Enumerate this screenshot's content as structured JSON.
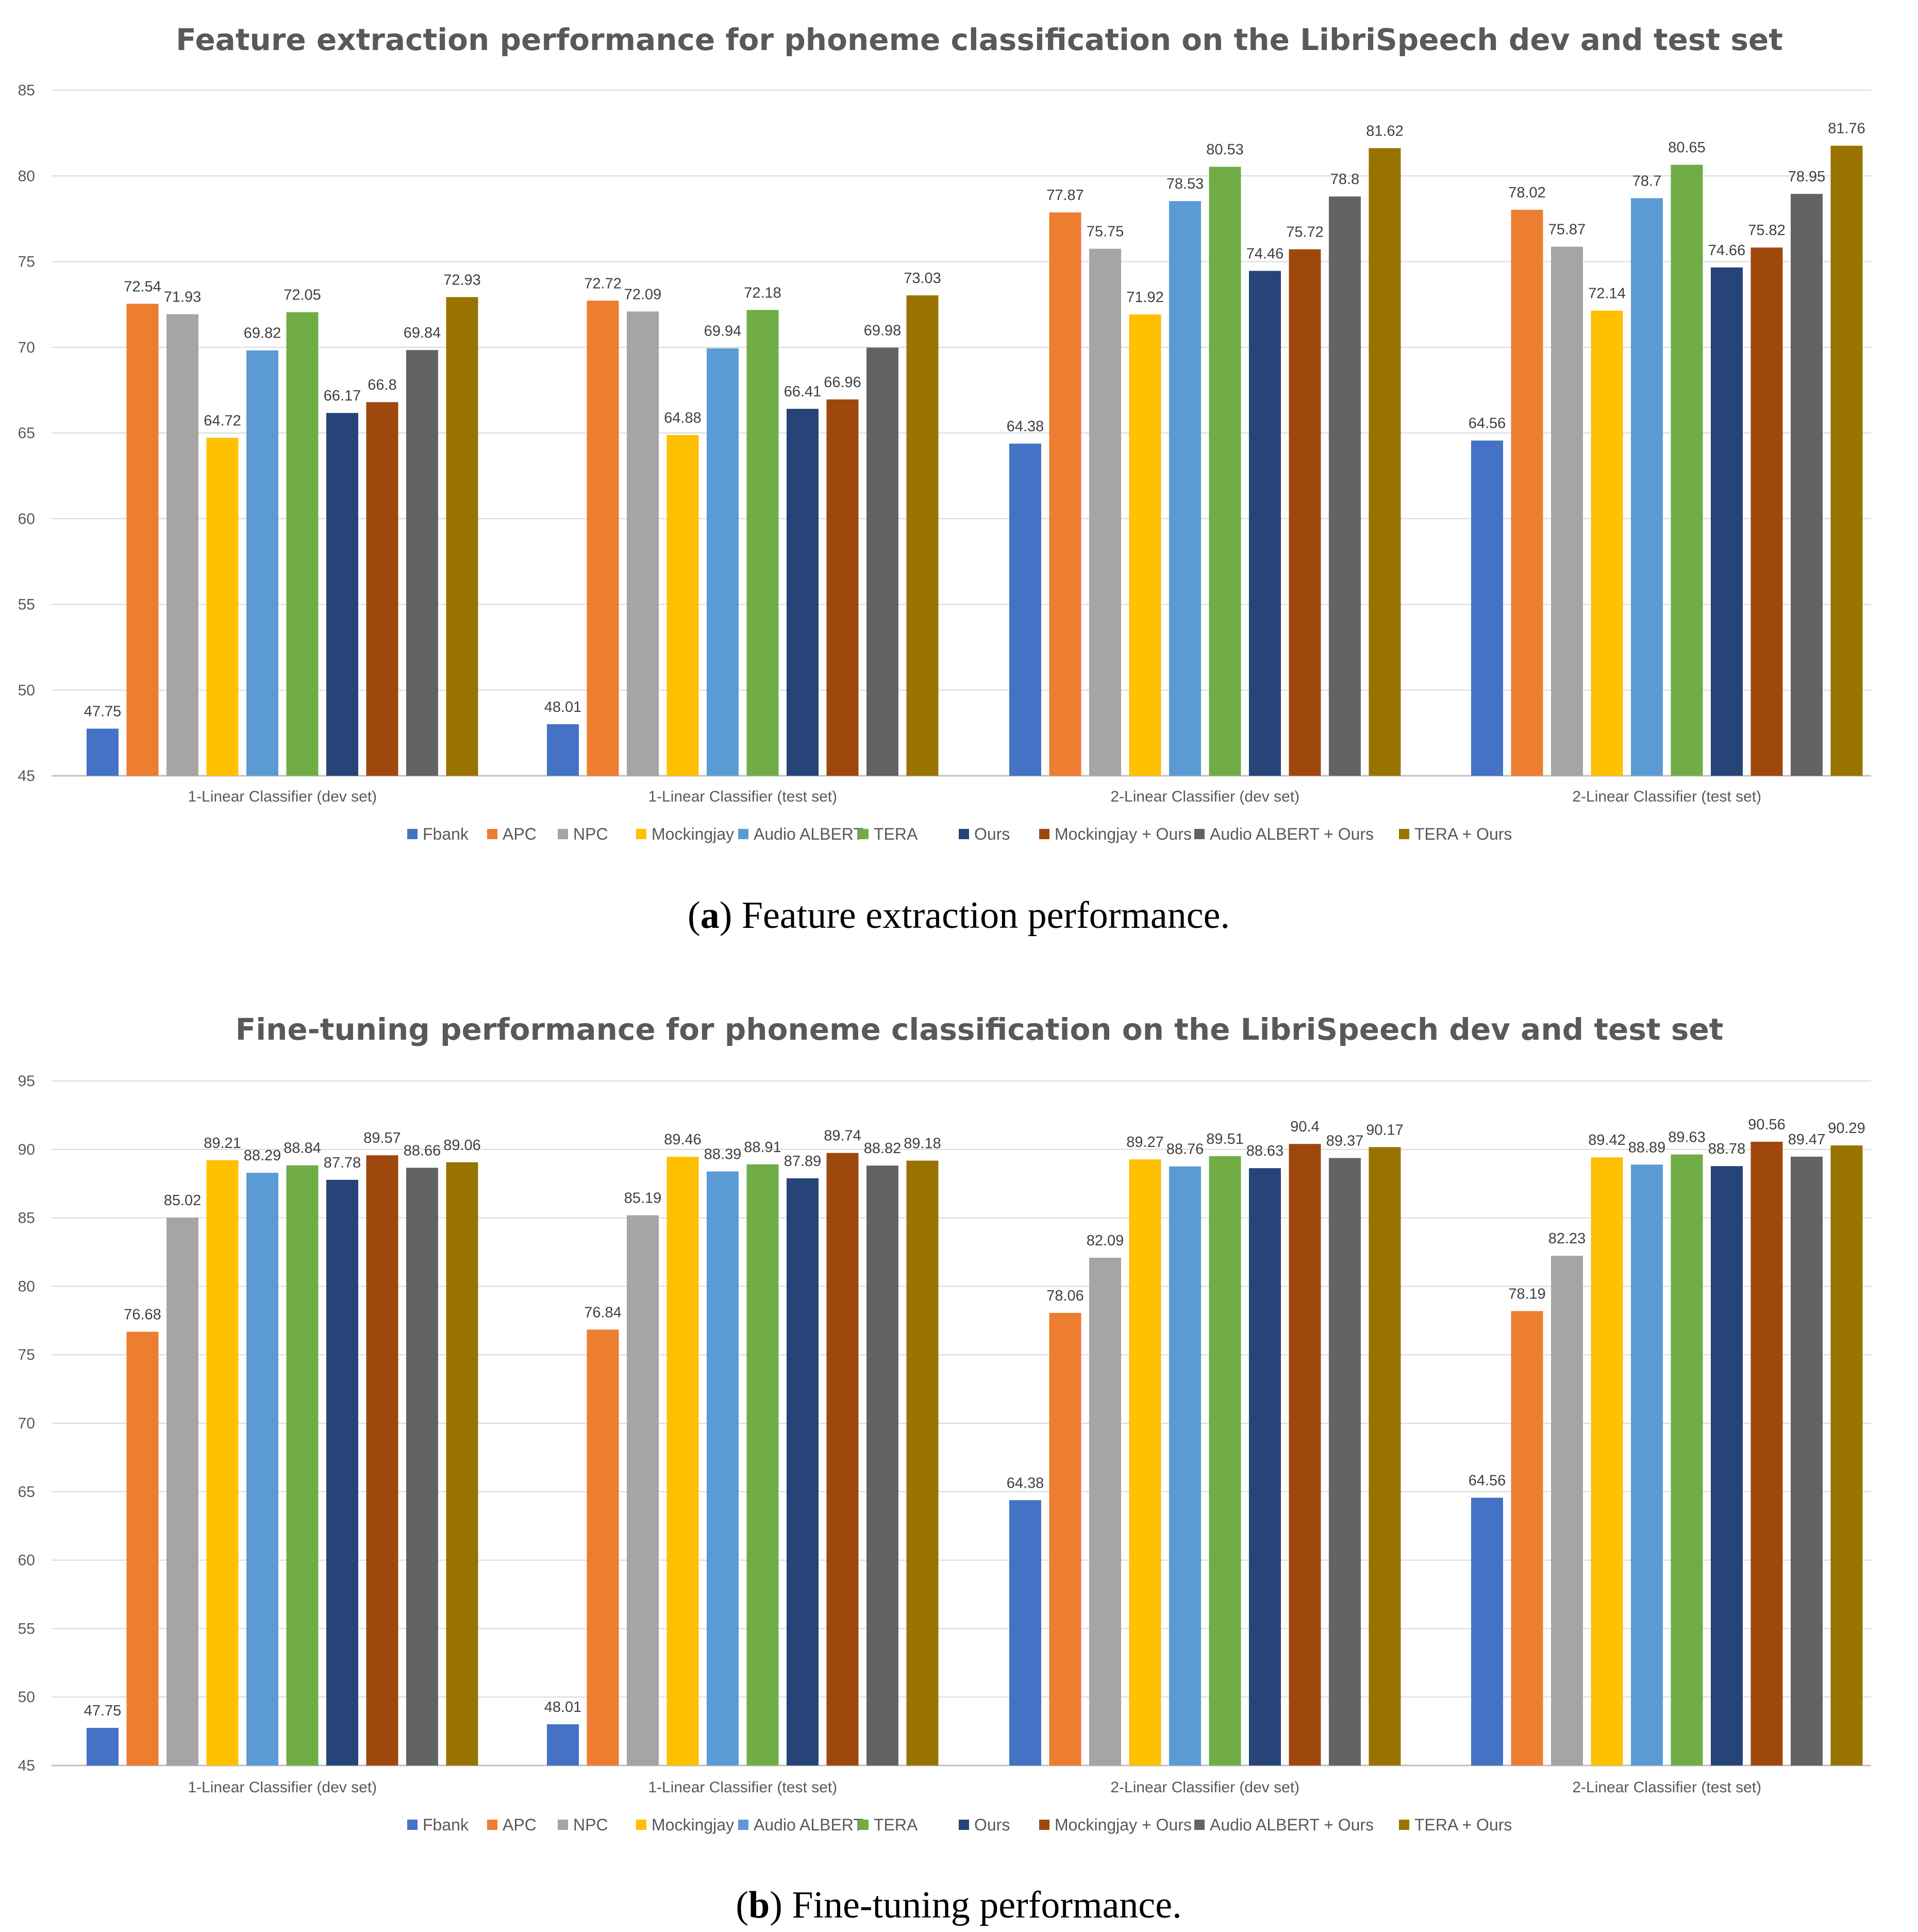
{
  "legend": [
    "Fbank",
    "APC",
    "NPC",
    "Mockingjay",
    "Audio ALBERT",
    "TERA",
    "Ours",
    "Mockingjay + Ours",
    "Audio ALBERT + Ours",
    "TERA + Ours"
  ],
  "colors": [
    "#4472C4",
    "#ED7D31",
    "#A5A5A5",
    "#FFC000",
    "#5B9BD5",
    "#70AD47",
    "#264478",
    "#9E480E",
    "#636363",
    "#997300"
  ],
  "captions": [
    {
      "label": "a",
      "text": ") Feature extraction performance."
    },
    {
      "label": "b",
      "text": ") Fine-tuning performance."
    }
  ],
  "chart_data": [
    {
      "type": "bar",
      "title": "Feature extraction performance for phoneme classification on the LibriSpeech dev and test set",
      "xlabel": "",
      "ylabel": "",
      "ylim": [
        45,
        85
      ],
      "ytick_step": 5,
      "yticks": [
        "85",
        "80",
        "75",
        "70",
        "65",
        "60",
        "55",
        "50",
        "45"
      ],
      "categories": [
        "1-Linear Classifier (dev set)",
        "1-Linear Classifier (test set)",
        "2-Linear Classifier (dev set)",
        "2-Linear Classifier (test set)"
      ],
      "series": [
        {
          "name": "Fbank",
          "values": [
            47.75,
            48.01,
            64.38,
            64.56
          ]
        },
        {
          "name": "APC",
          "values": [
            72.54,
            72.72,
            77.87,
            78.02
          ]
        },
        {
          "name": "NPC",
          "values": [
            71.93,
            72.09,
            75.75,
            75.87
          ]
        },
        {
          "name": "Mockingjay",
          "values": [
            64.72,
            64.88,
            71.92,
            72.14
          ]
        },
        {
          "name": "Audio ALBERT",
          "values": [
            69.82,
            69.94,
            78.53,
            78.7
          ]
        },
        {
          "name": "TERA",
          "values": [
            72.05,
            72.18,
            80.53,
            80.65
          ]
        },
        {
          "name": "Ours",
          "values": [
            66.17,
            66.41,
            74.46,
            74.66
          ]
        },
        {
          "name": "Mockingjay + Ours",
          "values": [
            66.8,
            66.96,
            75.72,
            75.82
          ]
        },
        {
          "name": "Audio ALBERT + Ours",
          "values": [
            69.84,
            69.98,
            78.8,
            78.95
          ]
        },
        {
          "name": "TERA + Ours",
          "values": [
            72.93,
            73.03,
            81.62,
            81.76
          ]
        }
      ],
      "legend_position": "bottom"
    },
    {
      "type": "bar",
      "title": "Fine-tuning performance for phoneme classification on the LibriSpeech dev and test set",
      "xlabel": "",
      "ylabel": "",
      "ylim": [
        45,
        95
      ],
      "ytick_step": 5,
      "yticks": [
        "95",
        "90",
        "85",
        "80",
        "75",
        "70",
        "65",
        "60",
        "55",
        "50",
        "45"
      ],
      "categories": [
        "1-Linear Classifier (dev set)",
        "1-Linear Classifier (test set)",
        "2-Linear Classifier (dev set)",
        "2-Linear Classifier (test set)"
      ],
      "series": [
        {
          "name": "Fbank",
          "values": [
            47.75,
            48.01,
            64.38,
            64.56
          ]
        },
        {
          "name": "APC",
          "values": [
            76.68,
            76.84,
            78.06,
            78.19
          ]
        },
        {
          "name": "NPC",
          "values": [
            85.02,
            85.19,
            82.09,
            82.23
          ]
        },
        {
          "name": "Mockingjay",
          "values": [
            89.21,
            89.46,
            89.27,
            89.42
          ]
        },
        {
          "name": "Audio ALBERT",
          "values": [
            88.29,
            88.39,
            88.76,
            88.89
          ]
        },
        {
          "name": "TERA",
          "values": [
            88.84,
            88.91,
            89.51,
            89.63
          ]
        },
        {
          "name": "Ours",
          "values": [
            87.78,
            87.89,
            88.63,
            88.78
          ]
        },
        {
          "name": "Mockingjay + Ours",
          "values": [
            89.57,
            89.74,
            90.4,
            90.56
          ]
        },
        {
          "name": "Audio ALBERT + Ours",
          "values": [
            88.66,
            88.82,
            89.37,
            89.47
          ]
        },
        {
          "name": "TERA + Ours",
          "values": [
            89.06,
            89.18,
            90.17,
            90.29
          ]
        }
      ],
      "legend_position": "bottom"
    }
  ]
}
